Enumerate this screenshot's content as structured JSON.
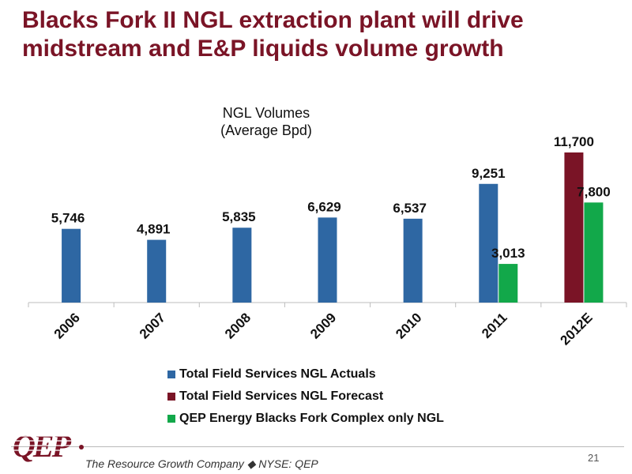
{
  "slide": {
    "title_lines": [
      "Blacks Fork II NGL extraction plant will drive",
      "midstream and E&P liquids volume growth"
    ],
    "tagline": "The Resource Growth Company ◆ NYSE: QEP",
    "page_number": "21",
    "logo_text": "QEP"
  },
  "chart_data": {
    "type": "bar",
    "title": "NGL Volumes\n(Average Bpd)",
    "title_lines": [
      "NGL Volumes",
      "(Average Bpd)"
    ],
    "categories": [
      "2006",
      "2007",
      "2008",
      "2009",
      "2010",
      "2011",
      "2012E"
    ],
    "series": [
      {
        "name": "Total Field Services NGL Actuals",
        "color": "#2e67a3",
        "values": [
          5746,
          4891,
          5835,
          6629,
          6537,
          9251,
          null
        ],
        "labels": [
          "5,746",
          "4,891",
          "5,835",
          "6,629",
          "6,537",
          "9,251",
          null
        ]
      },
      {
        "name": "Total Field Services NGL Forecast",
        "color": "#7a1426",
        "values": [
          null,
          null,
          null,
          null,
          null,
          null,
          11700
        ],
        "labels": [
          null,
          null,
          null,
          null,
          null,
          null,
          "11,700"
        ]
      },
      {
        "name": "QEP Energy Blacks Fork Complex only NGL",
        "color": "#12a84a",
        "values": [
          null,
          null,
          null,
          null,
          null,
          3013,
          7800
        ],
        "labels": [
          null,
          null,
          null,
          null,
          null,
          "3,013",
          "7,800"
        ]
      }
    ],
    "ylim": [
      0,
      11700
    ],
    "xlabel": "",
    "ylabel": "",
    "grid": false,
    "legend_position": "bottom"
  }
}
